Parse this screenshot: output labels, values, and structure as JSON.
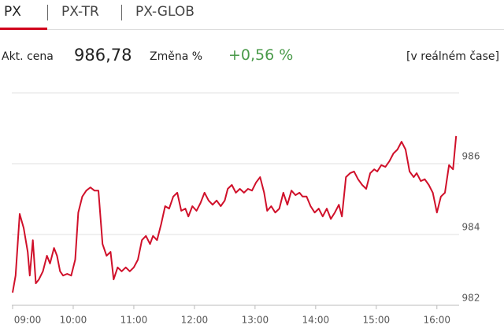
{
  "tabs": [
    "PX",
    "PX-TR",
    "PX-GLOB"
  ],
  "quote": {
    "price_label": "Akt. cena",
    "price": "986,78",
    "change_label": "Změna %",
    "change": "+0,56 %",
    "realtime": "[v reálném čase]"
  },
  "chart_data": {
    "type": "line",
    "x": [
      540,
      543,
      547,
      551,
      555,
      557,
      560,
      563,
      566,
      570,
      574,
      577,
      581,
      584,
      587,
      590,
      594,
      598,
      602,
      605,
      609,
      613,
      617,
      621,
      625,
      629,
      633,
      637,
      640,
      644,
      648,
      652,
      656,
      660,
      664,
      668,
      672,
      676,
      679,
      683,
      687,
      691,
      695,
      699,
      703,
      707,
      711,
      714,
      718,
      722,
      726,
      730,
      734,
      738,
      742,
      746,
      750,
      753,
      757,
      761,
      765,
      769,
      773,
      777,
      781,
      785,
      789,
      792,
      796,
      800,
      804,
      808,
      812,
      816,
      820,
      824,
      827,
      831,
      835,
      839,
      843,
      847,
      851,
      855,
      859,
      863,
      866,
      870,
      874,
      878,
      882,
      886,
      890,
      894,
      898,
      901,
      905,
      909,
      913,
      917,
      921,
      925,
      929,
      933,
      937,
      940,
      944,
      948,
      952,
      956,
      960,
      964,
      968,
      972,
      976,
      979
    ],
    "series": [
      {
        "color": "#d0102a",
        "values": [
          982.36,
          982.84,
          984.58,
          984.18,
          983.51,
          982.84,
          983.84,
          982.62,
          982.73,
          982.96,
          983.4,
          983.18,
          983.62,
          983.4,
          982.96,
          982.84,
          982.89,
          982.84,
          983.29,
          984.62,
          985.07,
          985.24,
          985.33,
          985.24,
          985.24,
          983.73,
          983.4,
          983.51,
          982.73,
          983.07,
          982.96,
          983.07,
          982.96,
          983.07,
          983.29,
          983.84,
          983.96,
          983.73,
          983.96,
          983.84,
          984.29,
          984.8,
          984.73,
          985.07,
          985.18,
          984.67,
          984.73,
          984.51,
          984.8,
          984.67,
          984.89,
          985.18,
          984.96,
          984.84,
          984.96,
          984.8,
          984.96,
          985.29,
          985.4,
          985.18,
          985.29,
          985.18,
          985.29,
          985.24,
          985.47,
          985.62,
          985.18,
          984.67,
          984.8,
          984.62,
          984.73,
          985.18,
          984.84,
          985.24,
          985.11,
          985.18,
          985.07,
          985.07,
          984.8,
          984.62,
          984.73,
          984.51,
          984.73,
          984.44,
          984.62,
          984.84,
          984.51,
          985.62,
          985.73,
          985.78,
          985.56,
          985.4,
          985.29,
          985.73,
          985.84,
          985.78,
          985.96,
          985.91,
          986.07,
          986.29,
          986.4,
          986.62,
          986.4,
          985.78,
          985.62,
          985.73,
          985.51,
          985.56,
          985.4,
          985.18,
          984.62,
          985.07,
          985.18,
          985.96,
          985.84,
          986.78
        ]
      }
    ],
    "xlim": [
      540,
      982
    ],
    "ylim": [
      982,
      988
    ],
    "xticks": [
      {
        "value": 540,
        "label": "09:00"
      },
      {
        "value": 600,
        "label": "10:00"
      },
      {
        "value": 660,
        "label": "11:00"
      },
      {
        "value": 720,
        "label": "12:00"
      },
      {
        "value": 780,
        "label": "13:00"
      },
      {
        "value": 840,
        "label": "14:00"
      },
      {
        "value": 900,
        "label": "15:00"
      },
      {
        "value": 960,
        "label": "16:00"
      }
    ],
    "yticks": [
      982,
      984,
      986
    ],
    "grid": true
  }
}
